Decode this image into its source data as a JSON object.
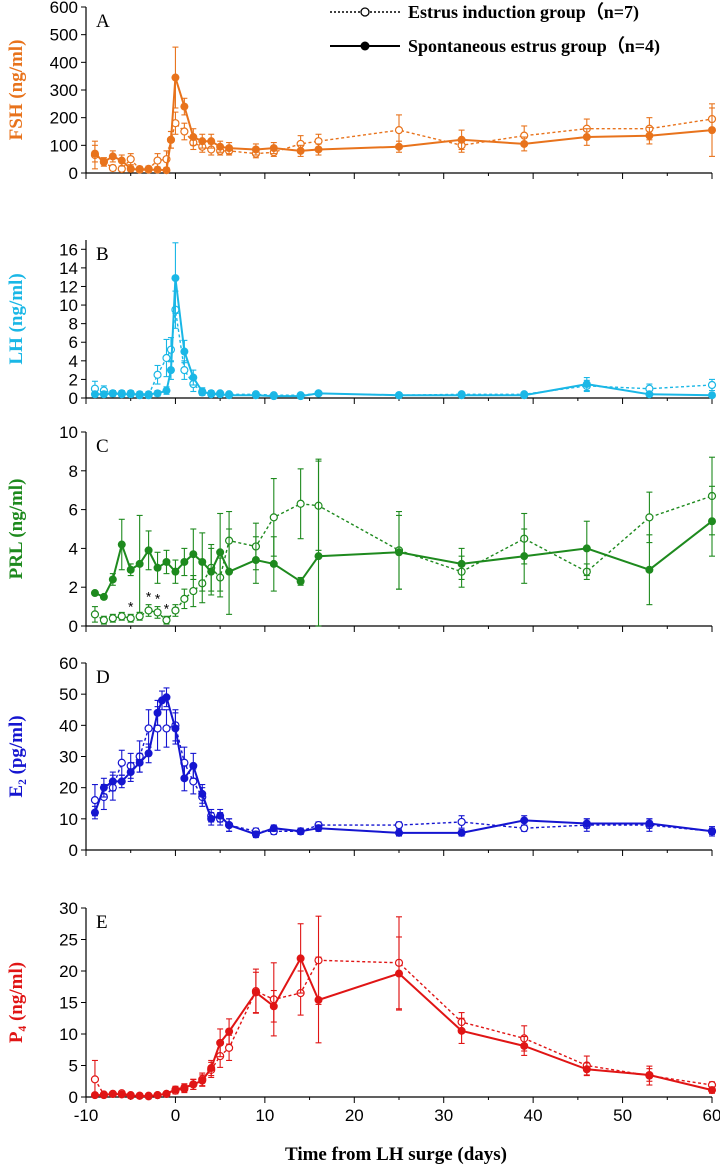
{
  "legend": {
    "induction": "Estrus induction group（n=7)",
    "spontaneous": "Spontaneous estrus group（n=4)"
  },
  "xlabel": "Time from LH surge (days)",
  "x_ticks": [
    "-10",
    "0",
    "10",
    "20",
    "30",
    "40",
    "50",
    "60"
  ],
  "chart_data": [
    {
      "type": "line",
      "panel": "A",
      "ylabel": "FSH (ng/ml)",
      "color": "#e8731c",
      "xlim": [
        -10,
        60
      ],
      "ylim": [
        0,
        600
      ],
      "y_ticks": [
        "0",
        "100",
        "200",
        "300",
        "400",
        "500",
        "600"
      ],
      "series": [
        {
          "name": "Estrus induction group（n=7)",
          "style": "dotted-open-circle",
          "x": [
            -9,
            -8,
            -7,
            -6,
            -5,
            -4,
            -3,
            -2,
            -1,
            -0.5,
            0,
            1,
            2,
            3,
            4,
            5,
            6,
            9,
            11,
            14,
            16,
            25,
            32,
            39,
            46,
            53,
            60
          ],
          "y": [
            65,
            40,
            18,
            15,
            50,
            14,
            15,
            45,
            50,
            120,
            180,
            150,
            110,
            95,
            85,
            80,
            80,
            70,
            75,
            105,
            115,
            155,
            100,
            135,
            160,
            160,
            195
          ],
          "err": [
            50,
            15,
            10,
            10,
            20,
            10,
            10,
            25,
            30,
            30,
            40,
            30,
            25,
            20,
            20,
            15,
            15,
            15,
            15,
            30,
            25,
            55,
            25,
            35,
            35,
            40,
            40
          ]
        },
        {
          "name": "Spontaneous estrus group（n=4)",
          "style": "solid-filled-circle",
          "x": [
            -9,
            -8,
            -7,
            -6,
            -5,
            -4,
            -3,
            -2,
            -1,
            -0.5,
            0,
            1,
            2,
            3,
            4,
            5,
            6,
            9,
            11,
            14,
            16,
            25,
            32,
            39,
            46,
            53,
            60
          ],
          "y": [
            70,
            40,
            60,
            45,
            15,
            12,
            12,
            12,
            10,
            120,
            345,
            240,
            130,
            115,
            115,
            95,
            90,
            85,
            90,
            80,
            85,
            95,
            120,
            105,
            130,
            135,
            155
          ],
          "err": [
            30,
            15,
            20,
            20,
            10,
            10,
            10,
            10,
            8,
            30,
            110,
            30,
            30,
            25,
            25,
            20,
            20,
            20,
            20,
            20,
            20,
            20,
            35,
            25,
            30,
            30,
            95
          ]
        }
      ]
    },
    {
      "type": "line",
      "panel": "B",
      "ylabel": "LH (ng/ml)",
      "color": "#1ab7e6",
      "xlim": [
        -10,
        60
      ],
      "ylim": [
        0,
        17
      ],
      "y_ticks": [
        "0",
        "2",
        "4",
        "6",
        "8",
        "10",
        "12",
        "14",
        "16"
      ],
      "series": [
        {
          "name": "Estrus induction group（n=7)",
          "style": "dotted-open-circle",
          "x": [
            -9,
            -8,
            -7,
            -6,
            -5,
            -4,
            -3,
            -2,
            -1,
            -0.5,
            0,
            1,
            2,
            3,
            4,
            5,
            6,
            9,
            11,
            14,
            16,
            25,
            32,
            39,
            46,
            53,
            60
          ],
          "y": [
            1.0,
            0.8,
            0.5,
            0.5,
            0.5,
            0.3,
            0.3,
            2.5,
            4.3,
            5.2,
            9.5,
            3.0,
            1.5,
            0.6,
            0.5,
            0.5,
            0.4,
            0.4,
            0.3,
            0.3,
            0.5,
            0.3,
            0.4,
            0.4,
            1.3,
            1.0,
            1.4
          ],
          "err": [
            0.8,
            0.5,
            0.3,
            0.3,
            0.3,
            0.2,
            0.2,
            1.0,
            2.0,
            1.3,
            2.0,
            1.0,
            0.8,
            0.3,
            0.3,
            0.2,
            0.2,
            0.2,
            0.2,
            0.2,
            0.2,
            0.2,
            0.2,
            0.2,
            0.6,
            0.5,
            0.6
          ]
        },
        {
          "name": "Spontaneous estrus group（n=4)",
          "style": "solid-filled-circle",
          "x": [
            -9,
            -8,
            -7,
            -6,
            -5,
            -4,
            -3,
            -2,
            -1,
            -0.5,
            0,
            1,
            2,
            3,
            4,
            5,
            6,
            9,
            11,
            14,
            16,
            25,
            32,
            39,
            46,
            53,
            60
          ],
          "y": [
            0.4,
            0.4,
            0.5,
            0.4,
            0.4,
            0.4,
            0.4,
            0.5,
            0.8,
            3.0,
            12.9,
            5.0,
            2.2,
            0.7,
            0.4,
            0.4,
            0.3,
            0.3,
            0.2,
            0.2,
            0.5,
            0.3,
            0.3,
            0.3,
            1.5,
            0.4,
            0.3
          ],
          "err": [
            0.3,
            0.3,
            0.3,
            0.3,
            0.3,
            0.3,
            0.3,
            0.3,
            0.4,
            1.0,
            3.8,
            1.2,
            0.8,
            0.4,
            0.2,
            0.2,
            0.2,
            0.2,
            0.2,
            0.2,
            0.2,
            0.2,
            0.2,
            0.2,
            0.7,
            0.2,
            0.2
          ]
        }
      ]
    },
    {
      "type": "line",
      "panel": "C",
      "ylabel": "PRL (ng/ml)",
      "color": "#1e8a1e",
      "xlim": [
        -10,
        60
      ],
      "ylim": [
        0,
        10
      ],
      "y_ticks": [
        "0",
        "2",
        "4",
        "6",
        "8",
        "10"
      ],
      "series": [
        {
          "name": "Estrus induction group（n=7)",
          "style": "dotted-open-circle",
          "x": [
            -9,
            -8,
            -7,
            -6,
            -5,
            -4,
            -3,
            -2,
            -1,
            0,
            1,
            2,
            3,
            4,
            5,
            6,
            9,
            11,
            14,
            16,
            25,
            32,
            39,
            46,
            53,
            60
          ],
          "y": [
            0.6,
            0.3,
            0.4,
            0.5,
            0.4,
            0.5,
            0.8,
            0.7,
            0.3,
            0.8,
            1.4,
            1.8,
            2.2,
            3.0,
            2.5,
            4.4,
            4.1,
            5.6,
            6.3,
            6.2,
            3.9,
            2.8,
            4.5,
            2.8,
            5.6,
            6.7
          ],
          "err": [
            0.4,
            0.2,
            0.2,
            0.2,
            0.2,
            0.2,
            0.3,
            0.3,
            0.2,
            0.3,
            0.5,
            0.8,
            1.0,
            1.2,
            1.0,
            1.5,
            1.2,
            2.0,
            1.8,
            2.3,
            2.0,
            0.8,
            1.3,
            0.4,
            1.3,
            2.0
          ],
          "significance": [
            "",
            "",
            "",
            "",
            "*",
            "",
            "*",
            "*",
            "*",
            "",
            "",
            "",
            "",
            "",
            "",
            "",
            "",
            "",
            "",
            "",
            "",
            "",
            "",
            "",
            "",
            ""
          ]
        },
        {
          "name": "Spontaneous estrus group（n=4)",
          "style": "solid-filled-circle",
          "x": [
            -9,
            -8,
            -7,
            -6,
            -5,
            -4,
            -3,
            -2,
            -1,
            0,
            1,
            2,
            3,
            4,
            5,
            6,
            9,
            11,
            14,
            16,
            25,
            32,
            39,
            46,
            53,
            60
          ],
          "y": [
            1.7,
            1.5,
            2.4,
            4.2,
            2.9,
            3.2,
            3.9,
            3.0,
            3.3,
            2.8,
            3.3,
            3.7,
            3.3,
            2.8,
            3.8,
            2.8,
            3.4,
            3.2,
            2.3,
            3.6,
            3.8,
            3.2,
            3.6,
            4.0,
            2.9,
            5.4
          ],
          "err": [
            0.1,
            0.1,
            0.3,
            1.3,
            0.3,
            2.5,
            1.0,
            0.8,
            0.6,
            0.6,
            0.7,
            1.3,
            1.5,
            1.2,
            2.0,
            2.2,
            1.2,
            1.4,
            0.2,
            5.0,
            1.9,
            0.8,
            1.4,
            1.4,
            1.8,
            1.8
          ]
        }
      ]
    },
    {
      "type": "line",
      "panel": "D",
      "ylabel": "E₂ (pg/ml)",
      "color": "#1515d0",
      "xlim": [
        -10,
        60
      ],
      "ylim": [
        0,
        60
      ],
      "y_ticks": [
        "0",
        "10",
        "20",
        "30",
        "40",
        "50",
        "60"
      ],
      "series": [
        {
          "name": "Estrus induction group（n=7)",
          "style": "dotted-open-circle",
          "x": [
            -9,
            -8,
            -7,
            -6,
            -5,
            -4,
            -3,
            -2,
            -1,
            0,
            1,
            2,
            3,
            4,
            5,
            6,
            9,
            11,
            14,
            16,
            25,
            32,
            39,
            46,
            53,
            60
          ],
          "y": [
            16,
            17,
            20,
            28,
            27,
            30,
            39,
            39,
            39,
            40,
            28,
            22,
            17,
            11,
            10,
            8,
            6,
            6,
            6,
            8,
            8,
            9,
            7,
            8,
            8,
            6
          ],
          "err": [
            5,
            4,
            4,
            4,
            4,
            5,
            6,
            7,
            6,
            5,
            5,
            4,
            3,
            2,
            2,
            2,
            1,
            1,
            1,
            1,
            1,
            2,
            1,
            2,
            2,
            1
          ]
        },
        {
          "name": "Spontaneous estrus group（n=4)",
          "style": "solid-filled-circle",
          "x": [
            -9,
            -8,
            -7,
            -6,
            -5,
            -4,
            -3,
            -2,
            -1.5,
            -1,
            0,
            1,
            2,
            3,
            4,
            5,
            6,
            9,
            11,
            14,
            16,
            25,
            32,
            39,
            46,
            53,
            60
          ],
          "y": [
            12,
            20,
            22,
            22,
            25,
            28,
            31,
            44,
            48,
            49,
            39,
            23,
            27,
            18,
            10,
            11,
            8,
            5,
            7,
            6,
            7,
            5.5,
            5.5,
            9.5,
            8.5,
            8.5,
            6
          ],
          "err": [
            2,
            3,
            3,
            2,
            3,
            3,
            3,
            4,
            3,
            3,
            5,
            4,
            4,
            3,
            2,
            2,
            2,
            1,
            1,
            1,
            1,
            1,
            1,
            1.5,
            1.5,
            1.5,
            1.5
          ]
        }
      ]
    },
    {
      "type": "line",
      "panel": "E",
      "ylabel": "P₄ (ng/ml)",
      "color": "#e01515",
      "xlim": [
        -10,
        60
      ],
      "ylim": [
        0,
        30
      ],
      "y_ticks": [
        "0",
        "5",
        "10",
        "15",
        "20",
        "25",
        "30"
      ],
      "series": [
        {
          "name": "Estrus induction group（n=7)",
          "style": "dotted-open-circle",
          "x": [
            -9,
            -8,
            -7,
            -6,
            -5,
            -4,
            -3,
            -2,
            -1,
            0,
            1,
            2,
            3,
            4,
            5,
            6,
            9,
            11,
            14,
            16,
            25,
            32,
            39,
            46,
            53,
            60
          ],
          "y": [
            2.8,
            0.4,
            0.5,
            0.6,
            0.3,
            0.2,
            0.2,
            0.3,
            0.5,
            1.0,
            1.3,
            2.0,
            2.8,
            4.3,
            6.5,
            7.8,
            16.8,
            15.5,
            16.5,
            21.7,
            21.3,
            11.9,
            9.3,
            5.0,
            3.4,
            1.9
          ],
          "err": [
            3.0,
            0.3,
            0.3,
            0.3,
            0.2,
            0.2,
            0.2,
            0.2,
            0.3,
            0.5,
            0.6,
            0.8,
            1.0,
            1.2,
            1.8,
            2.0,
            3.5,
            5.8,
            3.5,
            7.0,
            7.3,
            1.5,
            2.0,
            1.5,
            1.5,
            0.5
          ]
        },
        {
          "name": "Spontaneous estrus group（n=4)",
          "style": "solid-filled-circle",
          "x": [
            -9,
            -8,
            -7,
            -6,
            -5,
            -4,
            -3,
            -2,
            -1,
            0,
            1,
            2,
            3,
            4,
            5,
            6,
            9,
            11,
            14,
            16,
            25,
            32,
            39,
            46,
            53,
            60
          ],
          "y": [
            0.3,
            0.3,
            0.5,
            0.4,
            0.2,
            0.2,
            0.1,
            0.3,
            0.5,
            1.2,
            1.5,
            2.0,
            2.6,
            4.6,
            8.6,
            10.4,
            16.6,
            14.4,
            22.0,
            15.4,
            19.6,
            10.5,
            8.1,
            4.4,
            3.5,
            1.1
          ],
          "err": [
            0.3,
            0.2,
            0.3,
            0.2,
            0.2,
            0.2,
            0.1,
            0.2,
            0.3,
            0.5,
            0.6,
            0.8,
            0.9,
            1.2,
            2.2,
            2.0,
            3.2,
            2.5,
            5.5,
            6.8,
            5.8,
            2.0,
            1.5,
            1.0,
            1.0,
            0.5
          ]
        }
      ]
    }
  ]
}
